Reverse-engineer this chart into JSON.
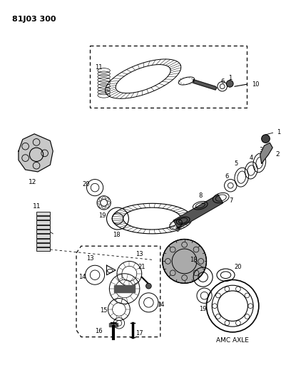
{
  "title": "81J03 300",
  "background_color": "#ffffff",
  "fig_width": 3.94,
  "fig_height": 5.33,
  "dpi": 100,
  "amc_axle_label": "AMC AXLE"
}
